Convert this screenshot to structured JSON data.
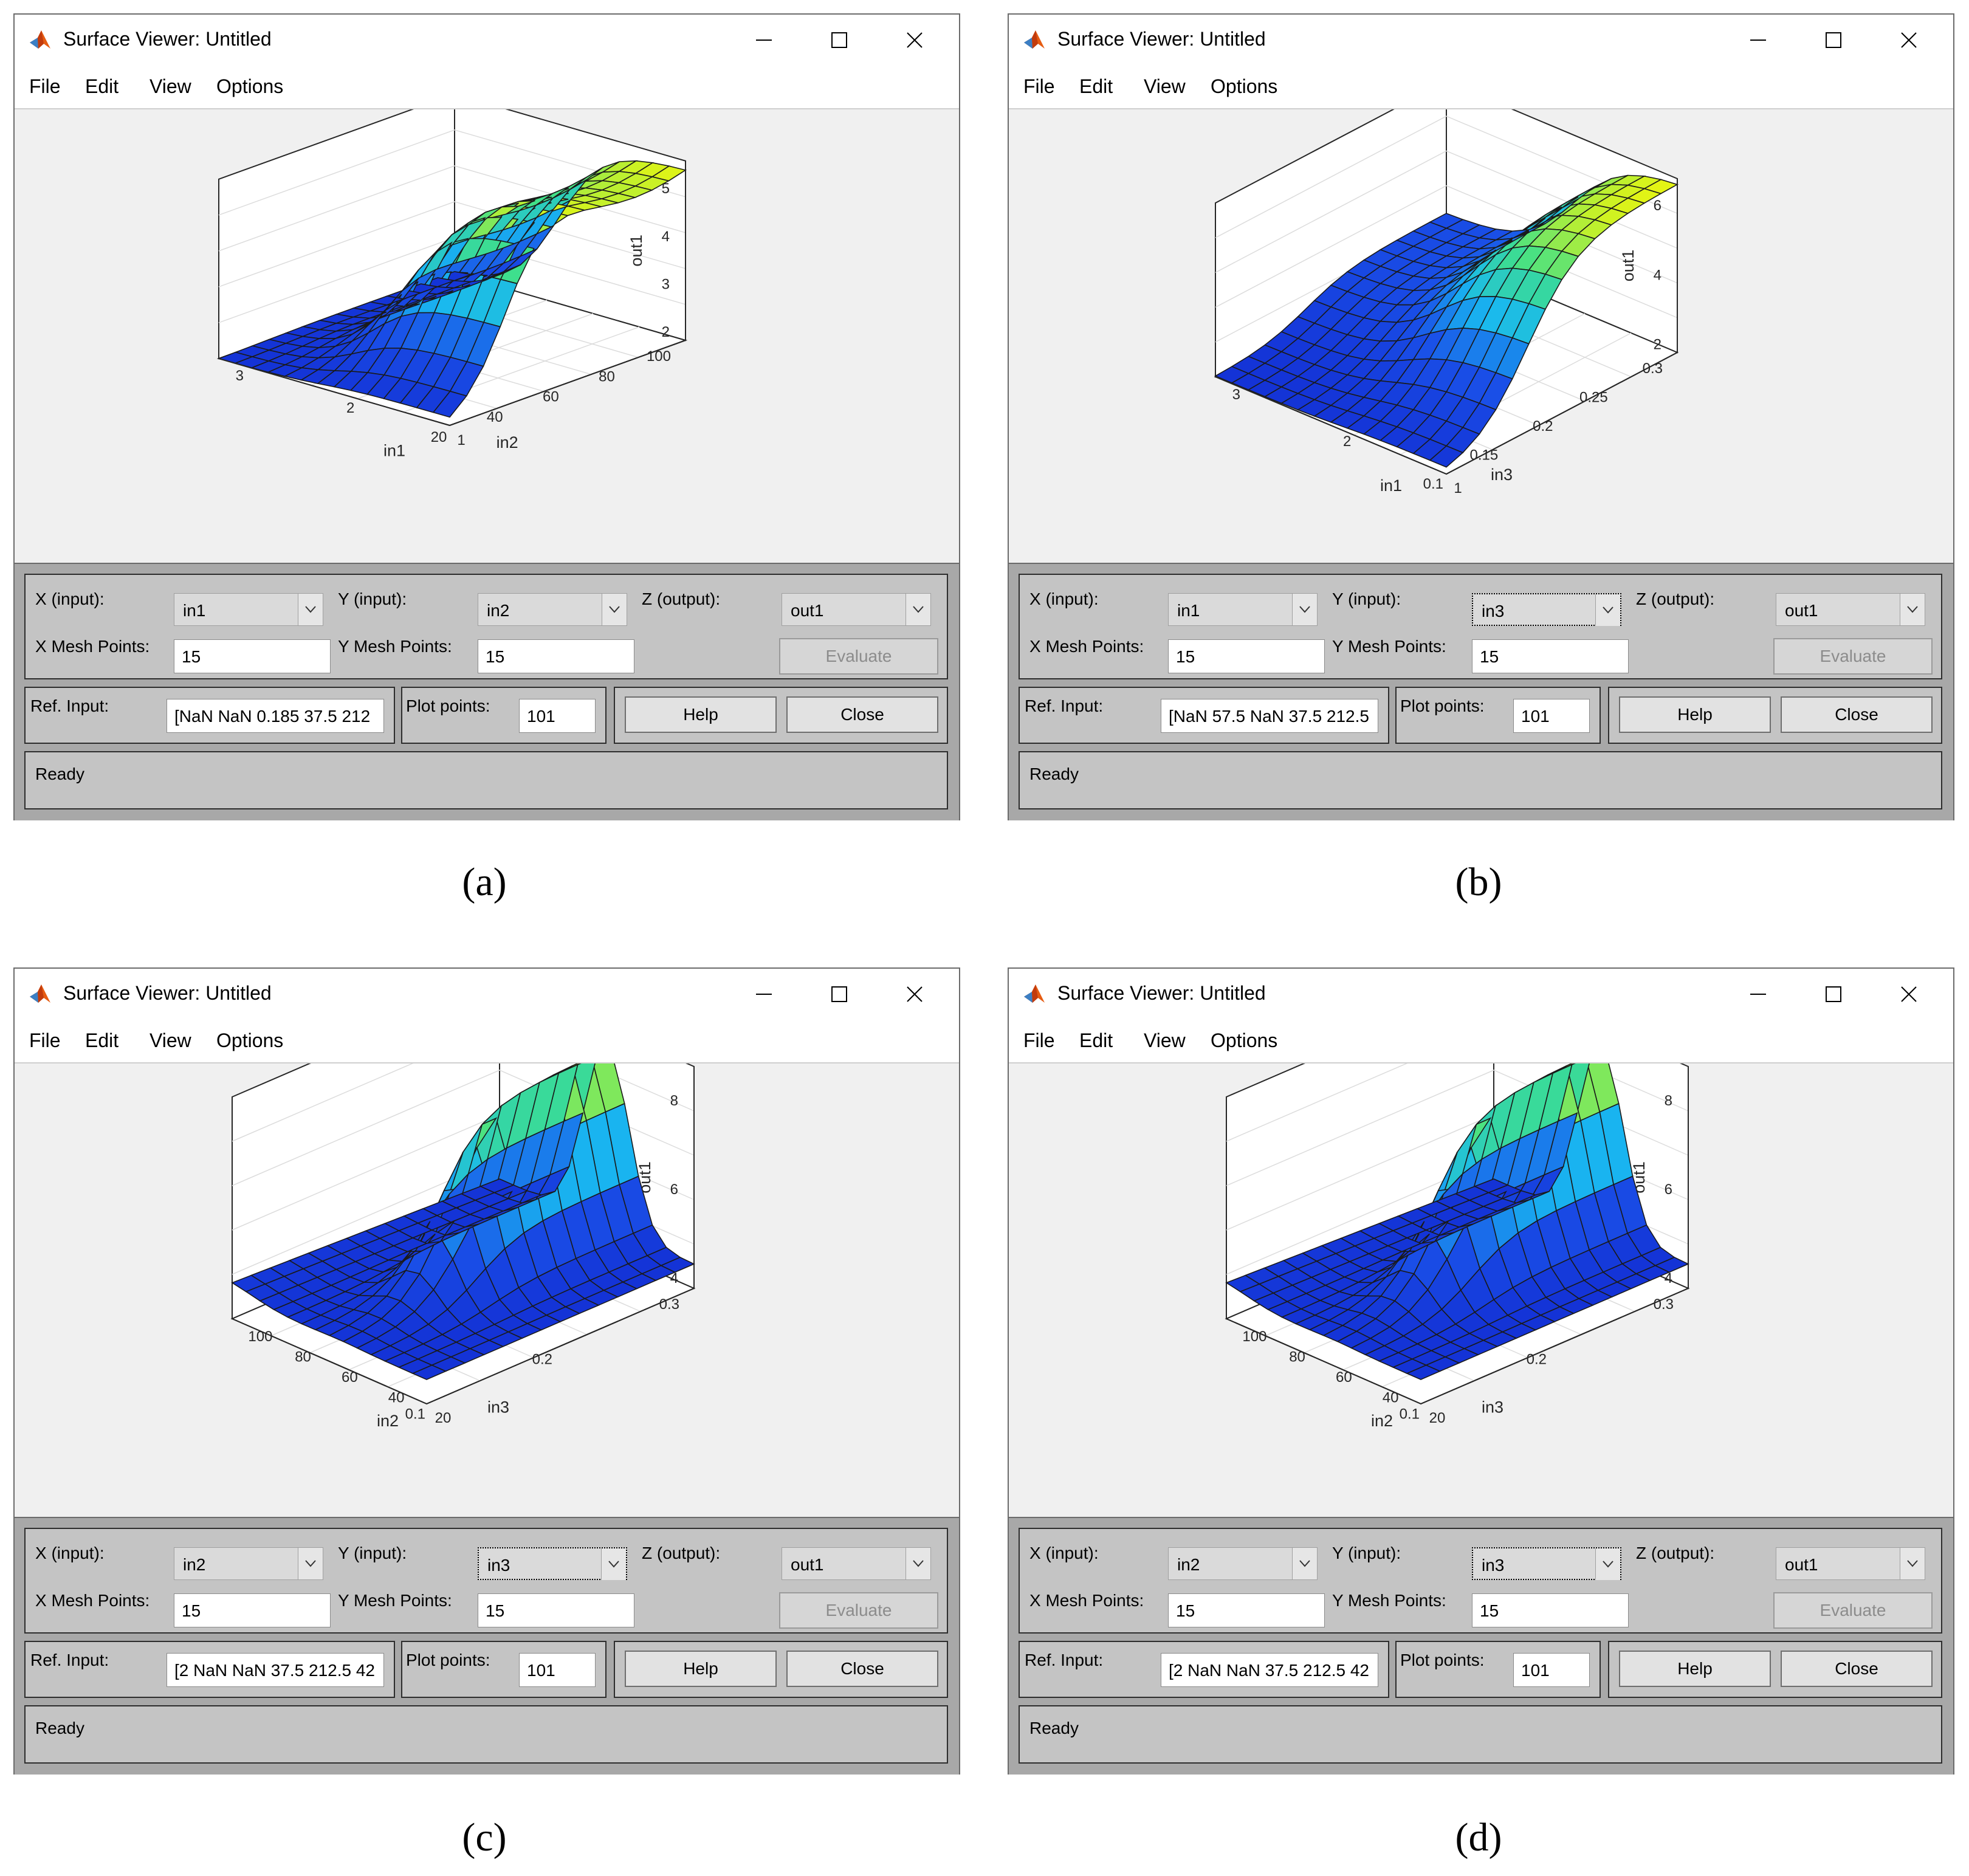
{
  "windows": [
    {
      "id": "a",
      "title": "Surface Viewer: Untitled",
      "menu": [
        "File",
        "Edit",
        "View",
        "Options"
      ],
      "axis_labels": {
        "x": "in1",
        "y": "in2",
        "z": "out1"
      },
      "z_ticks": [
        "2",
        "3",
        "4",
        "5"
      ],
      "y_ticks": [
        "100",
        "80",
        "60",
        "40",
        "20"
      ],
      "x_ticks": [
        "1",
        "2",
        "3"
      ],
      "controls": {
        "x_input_label": "X (input):",
        "x_input_value": "in1",
        "y_input_label": "Y (input):",
        "y_input_value": "in2",
        "y_focused": false,
        "z_output_label": "Z (output):",
        "z_output_value": "out1",
        "x_mesh_label": "X Mesh Points:",
        "x_mesh_value": "15",
        "y_mesh_label": "Y Mesh Points:",
        "y_mesh_value": "15",
        "evaluate_label": "Evaluate",
        "ref_input_label": "Ref. Input:",
        "ref_input_value": "[NaN NaN 0.185 37.5 212",
        "plot_points_label": "Plot points:",
        "plot_points_value": "101",
        "help_label": "Help",
        "close_label": "Close",
        "status": "Ready"
      },
      "caption": "(a)"
    },
    {
      "id": "b",
      "title": "Surface Viewer: Untitled",
      "menu": [
        "File",
        "Edit",
        "View",
        "Options"
      ],
      "axis_labels": {
        "x": "in1",
        "y": "in3",
        "z": "out1"
      },
      "z_ticks": [
        "2",
        "4",
        "6"
      ],
      "y_ticks": [
        "0.3",
        "0.25",
        "0.2",
        "0.15",
        "0.1"
      ],
      "x_ticks": [
        "1",
        "2",
        "3"
      ],
      "controls": {
        "x_input_label": "X (input):",
        "x_input_value": "in1",
        "y_input_label": "Y (input):",
        "y_input_value": "in3",
        "y_focused": true,
        "z_output_label": "Z (output):",
        "z_output_value": "out1",
        "x_mesh_label": "X Mesh Points:",
        "x_mesh_value": "15",
        "y_mesh_label": "Y Mesh Points:",
        "y_mesh_value": "15",
        "evaluate_label": "Evaluate",
        "ref_input_label": "Ref. Input:",
        "ref_input_value": "[NaN 57.5 NaN 37.5 212.5",
        "plot_points_label": "Plot points:",
        "plot_points_value": "101",
        "help_label": "Help",
        "close_label": "Close",
        "status": "Ready"
      },
      "caption": "(b)"
    },
    {
      "id": "c",
      "title": "Surface Viewer: Untitled",
      "menu": [
        "File",
        "Edit",
        "View",
        "Options"
      ],
      "axis_labels": {
        "x": "in2",
        "y": "in3",
        "z": "out1"
      },
      "z_ticks": [
        "4",
        "6",
        "8"
      ],
      "y_ticks": [
        "0.3",
        "0.2",
        "0.1"
      ],
      "x_ticks": [
        "20",
        "40",
        "60",
        "80",
        "100"
      ],
      "controls": {
        "x_input_label": "X (input):",
        "x_input_value": "in2",
        "y_input_label": "Y (input):",
        "y_input_value": "in3",
        "y_focused": true,
        "z_output_label": "Z (output):",
        "z_output_value": "out1",
        "x_mesh_label": "X Mesh Points:",
        "x_mesh_value": "15",
        "y_mesh_label": "Y Mesh Points:",
        "y_mesh_value": "15",
        "evaluate_label": "Evaluate",
        "ref_input_label": "Ref. Input:",
        "ref_input_value": "[2 NaN NaN 37.5 212.5 42",
        "plot_points_label": "Plot points:",
        "plot_points_value": "101",
        "help_label": "Help",
        "close_label": "Close",
        "status": "Ready"
      },
      "caption": "(c)"
    },
    {
      "id": "d",
      "title": "Surface Viewer: Untitled",
      "menu": [
        "File",
        "Edit",
        "View",
        "Options"
      ],
      "axis_labels": {
        "x": "in2",
        "y": "in3",
        "z": "out1"
      },
      "z_ticks": [
        "4",
        "6",
        "8"
      ],
      "y_ticks": [
        "0.3",
        "0.2",
        "0.1"
      ],
      "x_ticks": [
        "20",
        "40",
        "60",
        "80",
        "100"
      ],
      "controls": {
        "x_input_label": "X (input):",
        "x_input_value": "in2",
        "y_input_label": "Y (input):",
        "y_input_value": "in3",
        "y_focused": true,
        "z_output_label": "Z (output):",
        "z_output_value": "out1",
        "x_mesh_label": "X Mesh Points:",
        "x_mesh_value": "15",
        "y_mesh_label": "Y Mesh Points:",
        "y_mesh_value": "15",
        "evaluate_label": "Evaluate",
        "ref_input_label": "Ref. Input:",
        "ref_input_value": "[2 NaN NaN 37.5 212.5 42",
        "plot_points_label": "Plot points:",
        "plot_points_value": "101",
        "help_label": "Help",
        "close_label": "Close",
        "status": "Ready"
      },
      "caption": "(d)"
    }
  ],
  "colors": {
    "surface_low": "#1a50e8",
    "surface_mid": "#19b8f0",
    "surface_high": "#e8f510",
    "mesh_edge": "#1a1a1a",
    "panel_bg": "#c4c4c4"
  }
}
